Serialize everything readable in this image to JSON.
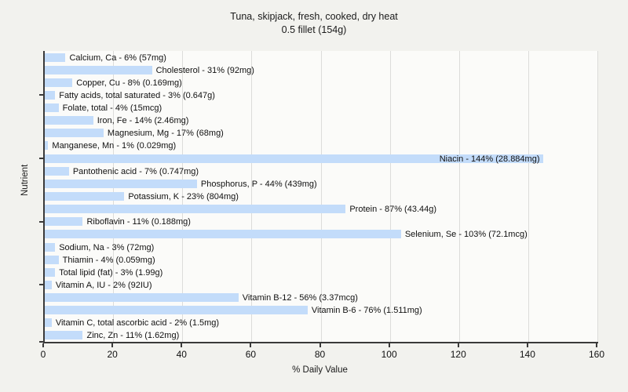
{
  "title": {
    "line1": "Tuna, skipjack, fresh, cooked, dry heat",
    "line2": "0.5 fillet (154g)"
  },
  "chart_data": {
    "type": "bar",
    "orientation": "horizontal",
    "title": "Tuna, skipjack, fresh, cooked, dry heat",
    "subtitle": "0.5 fillet (154g)",
    "xlabel": "% Daily Value",
    "ylabel": "Nutrient",
    "xlim": [
      0,
      160
    ],
    "x_ticks": [
      0,
      20,
      40,
      60,
      80,
      100,
      120,
      140,
      160
    ],
    "grid": "vertical-at-x-ticks",
    "legend": "none",
    "label_format": "{name} - {pct}% ({amount})",
    "bars": [
      {
        "name": "Calcium, Ca",
        "pct": 6,
        "amount": "57mg"
      },
      {
        "name": "Cholesterol",
        "pct": 31,
        "amount": "92mg"
      },
      {
        "name": "Copper, Cu",
        "pct": 8,
        "amount": "0.169mg"
      },
      {
        "name": "Fatty acids, total saturated",
        "pct": 3,
        "amount": "0.647g"
      },
      {
        "name": "Folate, total",
        "pct": 4,
        "amount": "15mcg"
      },
      {
        "name": "Iron, Fe",
        "pct": 14,
        "amount": "2.46mg"
      },
      {
        "name": "Magnesium, Mg",
        "pct": 17,
        "amount": "68mg"
      },
      {
        "name": "Manganese, Mn",
        "pct": 1,
        "amount": "0.029mg"
      },
      {
        "name": "Niacin",
        "pct": 144,
        "amount": "28.884mg"
      },
      {
        "name": "Pantothenic acid",
        "pct": 7,
        "amount": "0.747mg"
      },
      {
        "name": "Phosphorus, P",
        "pct": 44,
        "amount": "439mg"
      },
      {
        "name": "Potassium, K",
        "pct": 23,
        "amount": "804mg"
      },
      {
        "name": "Protein",
        "pct": 87,
        "amount": "43.44g"
      },
      {
        "name": "Riboflavin",
        "pct": 11,
        "amount": "0.188mg"
      },
      {
        "name": "Selenium, Se",
        "pct": 103,
        "amount": "72.1mcg"
      },
      {
        "name": "Sodium, Na",
        "pct": 3,
        "amount": "72mg"
      },
      {
        "name": "Thiamin",
        "pct": 4,
        "amount": "0.059mg"
      },
      {
        "name": "Total lipid (fat)",
        "pct": 3,
        "amount": "1.99g"
      },
      {
        "name": "Vitamin A, IU",
        "pct": 2,
        "amount": "92IU"
      },
      {
        "name": "Vitamin B-12",
        "pct": 56,
        "amount": "3.37mcg"
      },
      {
        "name": "Vitamin B-6",
        "pct": 76,
        "amount": "1.511mg"
      },
      {
        "name": "Vitamin C, total ascorbic acid",
        "pct": 2,
        "amount": "1.5mg"
      },
      {
        "name": "Zinc, Zn",
        "pct": 11,
        "amount": "1.62mg"
      }
    ],
    "y_tick_rows": [
      3,
      8,
      13,
      18,
      23
    ]
  },
  "colors": {
    "figure_background": "#f2f2ee",
    "plot_background": "#fbfbf9",
    "bar_fill": "#c3dcfa",
    "gridline": "#dcdcda",
    "axis": "#3a3a3a",
    "text": "#111111"
  }
}
